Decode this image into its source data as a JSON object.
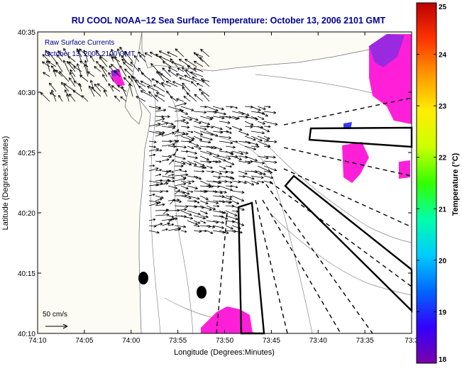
{
  "chart_data": {
    "type": "vector-map",
    "title": "RU COOL  NOAA−12  Sea Surface Temperature:  October 13, 2006 2101 GMT",
    "xlabel": "Longitude (Degrees:Minutes)",
    "ylabel": "Latitude (Degrees:Minutes)",
    "x_ticks": [
      "74:10",
      "74:05",
      "74:00",
      "73:55",
      "73:50",
      "73:45",
      "73:40",
      "73:35",
      "73:3"
    ],
    "y_ticks": [
      "40:35",
      "40:30",
      "40:25",
      "40:20",
      "40:15",
      "40:10"
    ],
    "xlim_minutes_west": [
      4450,
      4410
    ],
    "ylim_minutes_north": [
      2410,
      2435
    ],
    "legend_lines": [
      "Raw Surface Currents",
      "October 13, 2006 2100 GMT"
    ],
    "scale_label": "50 cm/s",
    "colorbar": {
      "label": "Temperature (°C)",
      "min": 18,
      "max": 25,
      "ticks": [
        "25",
        "24",
        "23",
        "22",
        "21",
        "20",
        "19",
        "18"
      ]
    },
    "colors": {
      "title": "#000099",
      "land": "#fcfcf4",
      "ocean": "#ffffff",
      "sst_patch": "#ff1fd8",
      "sst_cool": "#8a2be2"
    },
    "sst_color_scale": [
      "#7a00a8",
      "#3300ff",
      "#0066ff",
      "#00ccff",
      "#00ffaa",
      "#33ff00",
      "#ccff00",
      "#ffee00",
      "#ff9900",
      "#ff3300",
      "#bb0000"
    ]
  }
}
